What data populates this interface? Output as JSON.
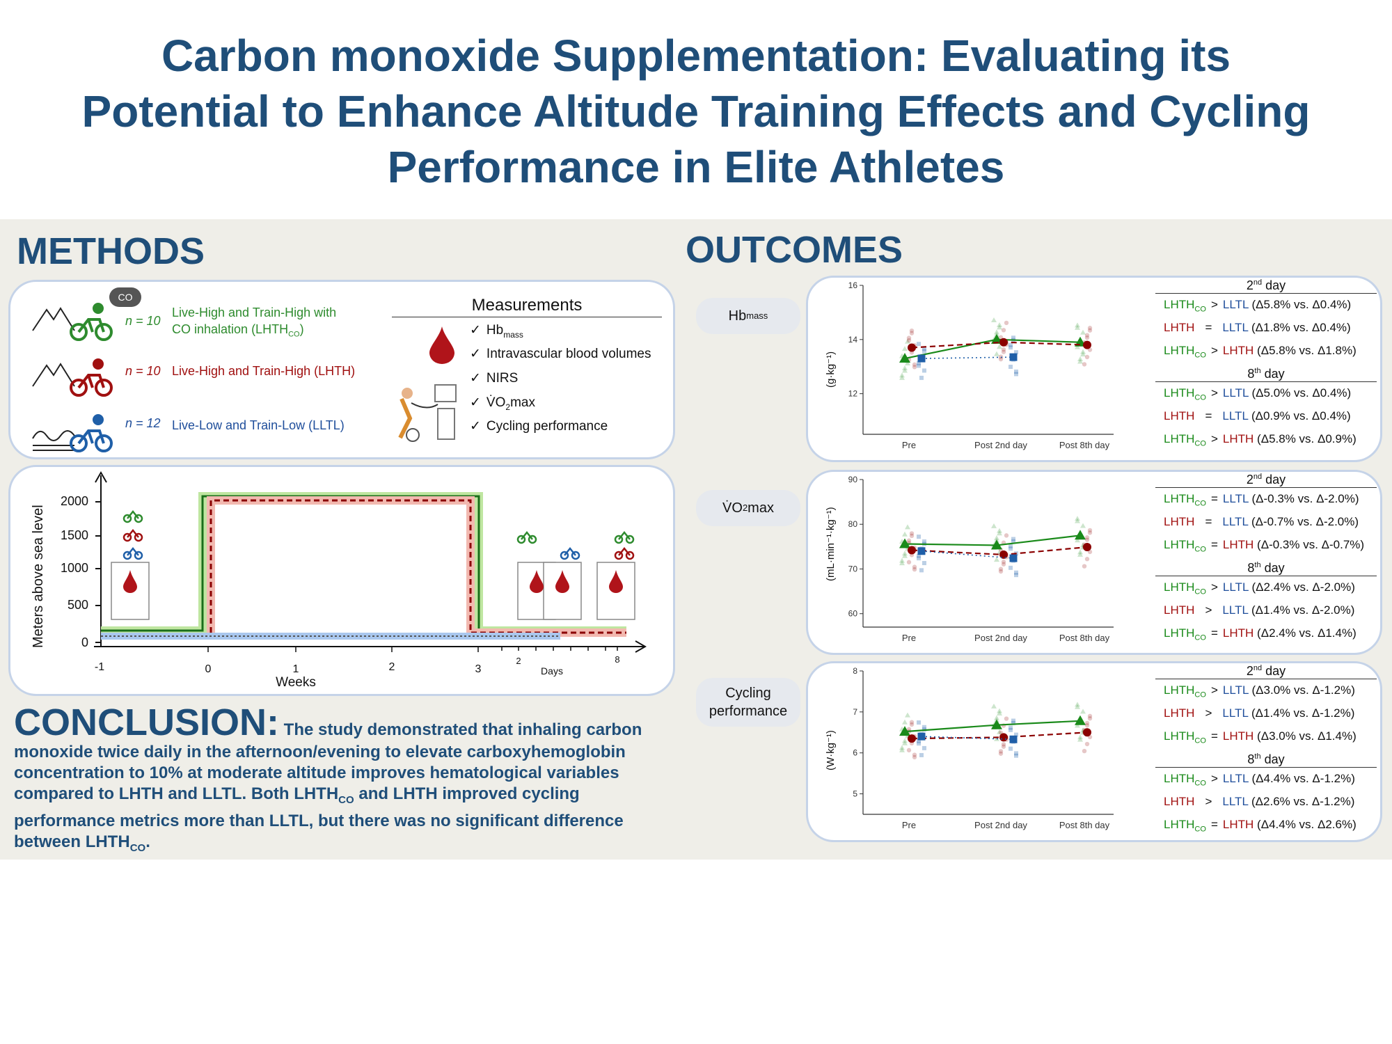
{
  "title": {
    "line1": "Carbon monoxide Supplementation: Evaluating its",
    "line2": "Potential to Enhance Altitude Training Effects and Cycling",
    "line3": "Performance in Elite Athletes"
  },
  "methods": {
    "heading": "METHODS",
    "co_badge": "CO",
    "groups": [
      {
        "n": "n = 10",
        "label": "Live-High and Train-High with",
        "label2": "CO inhalation (LHTH",
        "sub": "CO",
        "tail": ")",
        "color": "#2e8b2e"
      },
      {
        "n": "n = 10",
        "label": "Live-High and Train-High (LHTH)",
        "color": "#a01010"
      },
      {
        "n": "n = 12",
        "label": "Live-Low and Train-Low (LLTL)",
        "color": "#1f4e9b"
      }
    ],
    "measurements_title": "Measurements",
    "measurements": [
      "Hb",
      "Intravascular blood volumes",
      "NIRS",
      "V̇O",
      "Cycling performance"
    ],
    "hb_sub": "mass",
    "vo2_sub": "2",
    "vo2_tail": "max"
  },
  "timeline": {
    "ylabel": "Meters above sea level",
    "yticks": [
      "2000",
      "1500",
      "1000",
      "500",
      "0"
    ],
    "xticks_weeks": [
      "-1",
      "0",
      "1",
      "2",
      "3"
    ],
    "xlabel_weeks": "Weeks",
    "xticks_days": [
      "2",
      "8"
    ],
    "xlabel_days": "Days"
  },
  "conclusion": {
    "heading": "CONCLUSION:",
    "text1": "The study demonstrated that inhaling carbon",
    "text2": "monoxide twice daily in the afternoon/evening to elevate carboxyhemoglobin",
    "text3": "concentration to 10% at moderate altitude improves hematological variables",
    "text4a": "compared to LHTH and LLTL. Both LHTH",
    "sub": "CO",
    "text4b": " and LHTH improved cycling",
    "text5": "performance metrics more than LLTL, but there was no significant difference",
    "text6": "between LHTH",
    "text6b": "."
  },
  "outcomes": {
    "heading": "OUTCOMES",
    "labels": {
      "hb": "Hb",
      "hb_sub": "mass",
      "vo2": "V̇O",
      "vo2_sub": "2",
      "vo2_tail": "max",
      "cycling1": "Cycling",
      "cycling2": "performance"
    }
  },
  "chart_data": [
    {
      "type": "line",
      "title": "Hbmass",
      "ylabel": "(g·kg⁻¹)",
      "ylim": [
        10.5,
        16
      ],
      "yticks": [
        "16",
        "14",
        "12"
      ],
      "categories": [
        "Pre",
        "Post 2nd day",
        "Post 8th day"
      ],
      "series": [
        {
          "name": "LHTHCO",
          "color": "#1a8a1a",
          "values": [
            13.3,
            14.0,
            13.9
          ]
        },
        {
          "name": "LHTH",
          "color": "#8b0000",
          "values": [
            13.7,
            13.9,
            13.8
          ]
        },
        {
          "name": "LLTL",
          "color": "#1f5fa8",
          "values": [
            13.3,
            13.35,
            null
          ]
        }
      ]
    },
    {
      "type": "line",
      "title": "VO2max",
      "ylabel": "(mL·min⁻¹·kg⁻¹)",
      "ylim": [
        57,
        90
      ],
      "yticks": [
        "90",
        "80",
        "70",
        "60"
      ],
      "categories": [
        "Pre",
        "Post 2nd day",
        "Post 8th day"
      ],
      "series": [
        {
          "name": "LHTHCO",
          "color": "#1a8a1a",
          "values": [
            75.6,
            75.3,
            77.5
          ]
        },
        {
          "name": "LHTH",
          "color": "#8b0000",
          "values": [
            74.2,
            73.2,
            74.9
          ]
        },
        {
          "name": "LLTL",
          "color": "#1f5fa8",
          "values": [
            74.0,
            72.4,
            null
          ]
        }
      ]
    },
    {
      "type": "line",
      "title": "Cycling performance",
      "ylabel": "(W·kg⁻¹)",
      "ylim": [
        4.5,
        8
      ],
      "yticks": [
        "8",
        "7",
        "6",
        "5"
      ],
      "categories": [
        "Pre",
        "Post 2nd day",
        "Post 8th day"
      ],
      "series": [
        {
          "name": "LHTHCO",
          "color": "#1a8a1a",
          "values": [
            6.52,
            6.68,
            6.78
          ]
        },
        {
          "name": "LHTH",
          "color": "#8b0000",
          "values": [
            6.35,
            6.38,
            6.5
          ]
        },
        {
          "name": "LLTL",
          "color": "#1f5fa8",
          "values": [
            6.4,
            6.33,
            null
          ]
        }
      ]
    }
  ],
  "stats": [
    {
      "day2": "2nd day",
      "day8": "8th day",
      "rows": [
        [
          "LHTH",
          "CO",
          ">",
          "LLTL",
          "(Δ5.8% vs. Δ0.4%)"
        ],
        [
          "LHTH",
          "",
          "=",
          "LLTL",
          "(Δ1.8% vs. Δ0.4%)"
        ],
        [
          "LHTH",
          "CO",
          ">",
          "LHTH",
          "(Δ5.8% vs. Δ1.8%)"
        ],
        [
          "LHTH",
          "CO",
          ">",
          "LLTL",
          "(Δ5.0% vs. Δ0.4%)"
        ],
        [
          "LHTH",
          "",
          "=",
          "LLTL",
          "(Δ0.9% vs. Δ0.4%)"
        ],
        [
          "LHTH",
          "CO",
          ">",
          "LHTH",
          "(Δ5.8% vs. Δ0.9%)"
        ]
      ]
    },
    {
      "day2": "2nd day",
      "day8": "8th day",
      "rows": [
        [
          "LHTH",
          "CO",
          "=",
          "LLTL",
          "(Δ-0.3% vs. Δ-2.0%)"
        ],
        [
          "LHTH",
          "",
          "=",
          "LLTL",
          "(Δ-0.7% vs. Δ-2.0%)"
        ],
        [
          "LHTH",
          "CO",
          "=",
          "LHTH",
          "(Δ-0.3% vs. Δ-0.7%)"
        ],
        [
          "LHTH",
          "CO",
          ">",
          "LLTL",
          "(Δ2.4% vs. Δ-2.0%)"
        ],
        [
          "LHTH",
          "",
          ">",
          "LLTL",
          "(Δ1.4% vs. Δ-2.0%)"
        ],
        [
          "LHTH",
          "CO",
          "=",
          "LHTH",
          "(Δ2.4% vs. Δ1.4%)"
        ]
      ]
    },
    {
      "day2": "2nd day",
      "day8": "8th day",
      "rows": [
        [
          "LHTH",
          "CO",
          ">",
          "LLTL",
          "(Δ3.0% vs. Δ-1.2%)"
        ],
        [
          "LHTH",
          "",
          ">",
          "LLTL",
          "(Δ1.4% vs. Δ-1.2%)"
        ],
        [
          "LHTH",
          "CO",
          "=",
          "LHTH",
          "(Δ3.0% vs. Δ1.4%)"
        ],
        [
          "LHTH",
          "CO",
          ">",
          "LLTL",
          "(Δ4.4% vs. Δ-1.2%)"
        ],
        [
          "LHTH",
          "",
          ">",
          "LLTL",
          "(Δ2.6% vs. Δ-1.2%)"
        ],
        [
          "LHTH",
          "CO",
          "=",
          "LHTH",
          "(Δ4.4% vs. Δ2.6%)"
        ]
      ]
    }
  ],
  "colors": {
    "title": "#1f4e79",
    "green": "#1a8a1a",
    "red": "#a01010",
    "blue": "#1f4e9b"
  }
}
